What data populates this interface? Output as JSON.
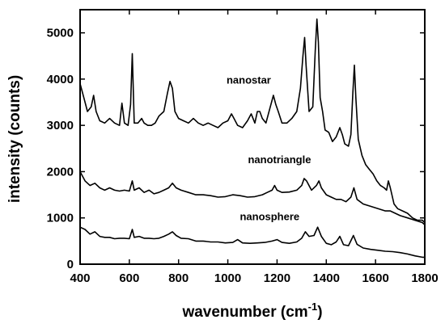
{
  "chart_data": {
    "type": "line",
    "title": "",
    "xlabel": "wavenumber (cm",
    "xlabel_sup": "-1",
    "xlabel_close": ")",
    "ylabel": "intensity (counts)",
    "xlim": [
      400,
      1800
    ],
    "ylim": [
      0,
      5500
    ],
    "xticks": [
      400,
      600,
      800,
      1000,
      1200,
      1400,
      1600,
      1800
    ],
    "yticks": [
      0,
      1000,
      2000,
      3000,
      4000,
      5000
    ],
    "grid": false,
    "line_color": "#000000",
    "series": [
      {
        "name": "nanostar",
        "x": [
          400,
          415,
          430,
          445,
          455,
          465,
          480,
          500,
          520,
          540,
          560,
          570,
          580,
          595,
          605,
          612,
          620,
          635,
          650,
          660,
          675,
          690,
          705,
          720,
          740,
          755,
          765,
          775,
          785,
          800,
          820,
          840,
          860,
          880,
          900,
          920,
          940,
          960,
          980,
          1000,
          1015,
          1025,
          1040,
          1060,
          1080,
          1095,
          1110,
          1120,
          1130,
          1140,
          1155,
          1170,
          1185,
          1195,
          1205,
          1220,
          1240,
          1260,
          1280,
          1295,
          1305,
          1312,
          1318,
          1330,
          1345,
          1355,
          1362,
          1368,
          1375,
          1385,
          1395,
          1410,
          1425,
          1440,
          1455,
          1465,
          1475,
          1490,
          1500,
          1508,
          1514,
          1520,
          1530,
          1545,
          1560,
          1575,
          1590,
          1605,
          1620,
          1635,
          1645,
          1652,
          1660,
          1675,
          1690,
          1710,
          1730,
          1750,
          1770,
          1790,
          1800
        ],
        "y": [
          3900,
          3600,
          3300,
          3400,
          3650,
          3300,
          3100,
          3050,
          3150,
          3050,
          3000,
          3480,
          3050,
          3000,
          3450,
          4550,
          3050,
          3050,
          3150,
          3050,
          3000,
          3000,
          3050,
          3200,
          3300,
          3700,
          3950,
          3800,
          3300,
          3150,
          3100,
          3050,
          3150,
          3050,
          3000,
          3050,
          3000,
          2950,
          3050,
          3100,
          3250,
          3150,
          3000,
          2950,
          3100,
          3250,
          3050,
          3300,
          3300,
          3150,
          3050,
          3350,
          3650,
          3450,
          3300,
          3050,
          3050,
          3150,
          3300,
          3800,
          4500,
          4900,
          4300,
          3300,
          3400,
          4600,
          5300,
          4800,
          3600,
          3300,
          2900,
          2850,
          2650,
          2750,
          2950,
          2800,
          2600,
          2550,
          2800,
          3700,
          4300,
          3600,
          2700,
          2350,
          2150,
          2050,
          1950,
          1800,
          1700,
          1650,
          1600,
          1800,
          1650,
          1300,
          1200,
          1150,
          1100,
          1000,
          950,
          950,
          900
        ]
      },
      {
        "name": "nanotriangle",
        "x": [
          400,
          420,
          440,
          460,
          480,
          500,
          520,
          540,
          560,
          580,
          600,
          612,
          620,
          640,
          660,
          680,
          700,
          720,
          740,
          760,
          775,
          790,
          810,
          840,
          870,
          900,
          930,
          960,
          990,
          1020,
          1050,
          1080,
          1110,
          1140,
          1160,
          1180,
          1190,
          1200,
          1220,
          1250,
          1280,
          1300,
          1310,
          1320,
          1340,
          1360,
          1370,
          1380,
          1400,
          1420,
          1440,
          1460,
          1480,
          1500,
          1512,
          1525,
          1550,
          1580,
          1610,
          1640,
          1660,
          1680,
          1700,
          1730,
          1760,
          1790,
          1800
        ],
        "y": [
          2000,
          1800,
          1700,
          1750,
          1650,
          1600,
          1650,
          1600,
          1580,
          1600,
          1580,
          1800,
          1600,
          1650,
          1550,
          1600,
          1520,
          1550,
          1600,
          1650,
          1750,
          1650,
          1600,
          1550,
          1500,
          1500,
          1480,
          1450,
          1460,
          1500,
          1480,
          1450,
          1460,
          1500,
          1550,
          1600,
          1700,
          1600,
          1550,
          1560,
          1600,
          1700,
          1850,
          1800,
          1600,
          1700,
          1800,
          1650,
          1500,
          1450,
          1400,
          1400,
          1350,
          1450,
          1650,
          1400,
          1300,
          1250,
          1200,
          1150,
          1150,
          1100,
          1050,
          1000,
          950,
          900,
          850
        ]
      },
      {
        "name": "nanosphere",
        "x": [
          400,
          420,
          440,
          460,
          480,
          500,
          520,
          540,
          560,
          580,
          600,
          612,
          620,
          640,
          660,
          680,
          700,
          720,
          740,
          760,
          775,
          790,
          810,
          840,
          870,
          900,
          930,
          960,
          990,
          1020,
          1040,
          1060,
          1090,
          1120,
          1150,
          1180,
          1200,
          1220,
          1250,
          1280,
          1300,
          1315,
          1330,
          1350,
          1365,
          1380,
          1400,
          1420,
          1440,
          1455,
          1470,
          1490,
          1510,
          1525,
          1550,
          1580,
          1610,
          1640,
          1670,
          1700,
          1730,
          1760,
          1790,
          1800
        ],
        "y": [
          800,
          750,
          650,
          700,
          600,
          580,
          580,
          550,
          560,
          560,
          550,
          750,
          580,
          600,
          560,
          560,
          550,
          560,
          600,
          650,
          700,
          620,
          560,
          550,
          500,
          500,
          480,
          480,
          460,
          470,
          530,
          460,
          450,
          460,
          470,
          500,
          530,
          470,
          450,
          480,
          560,
          700,
          600,
          620,
          800,
          600,
          450,
          420,
          480,
          600,
          420,
          400,
          620,
          430,
          350,
          320,
          300,
          280,
          270,
          250,
          220,
          180,
          150,
          150
        ]
      }
    ],
    "annotations": [
      {
        "text": "nanostar",
        "x": 1085,
        "y": 3900
      },
      {
        "text": "nanotriangle",
        "x": 1210,
        "y": 2180
      },
      {
        "text": "nanosphere",
        "x": 1170,
        "y": 950
      }
    ]
  }
}
